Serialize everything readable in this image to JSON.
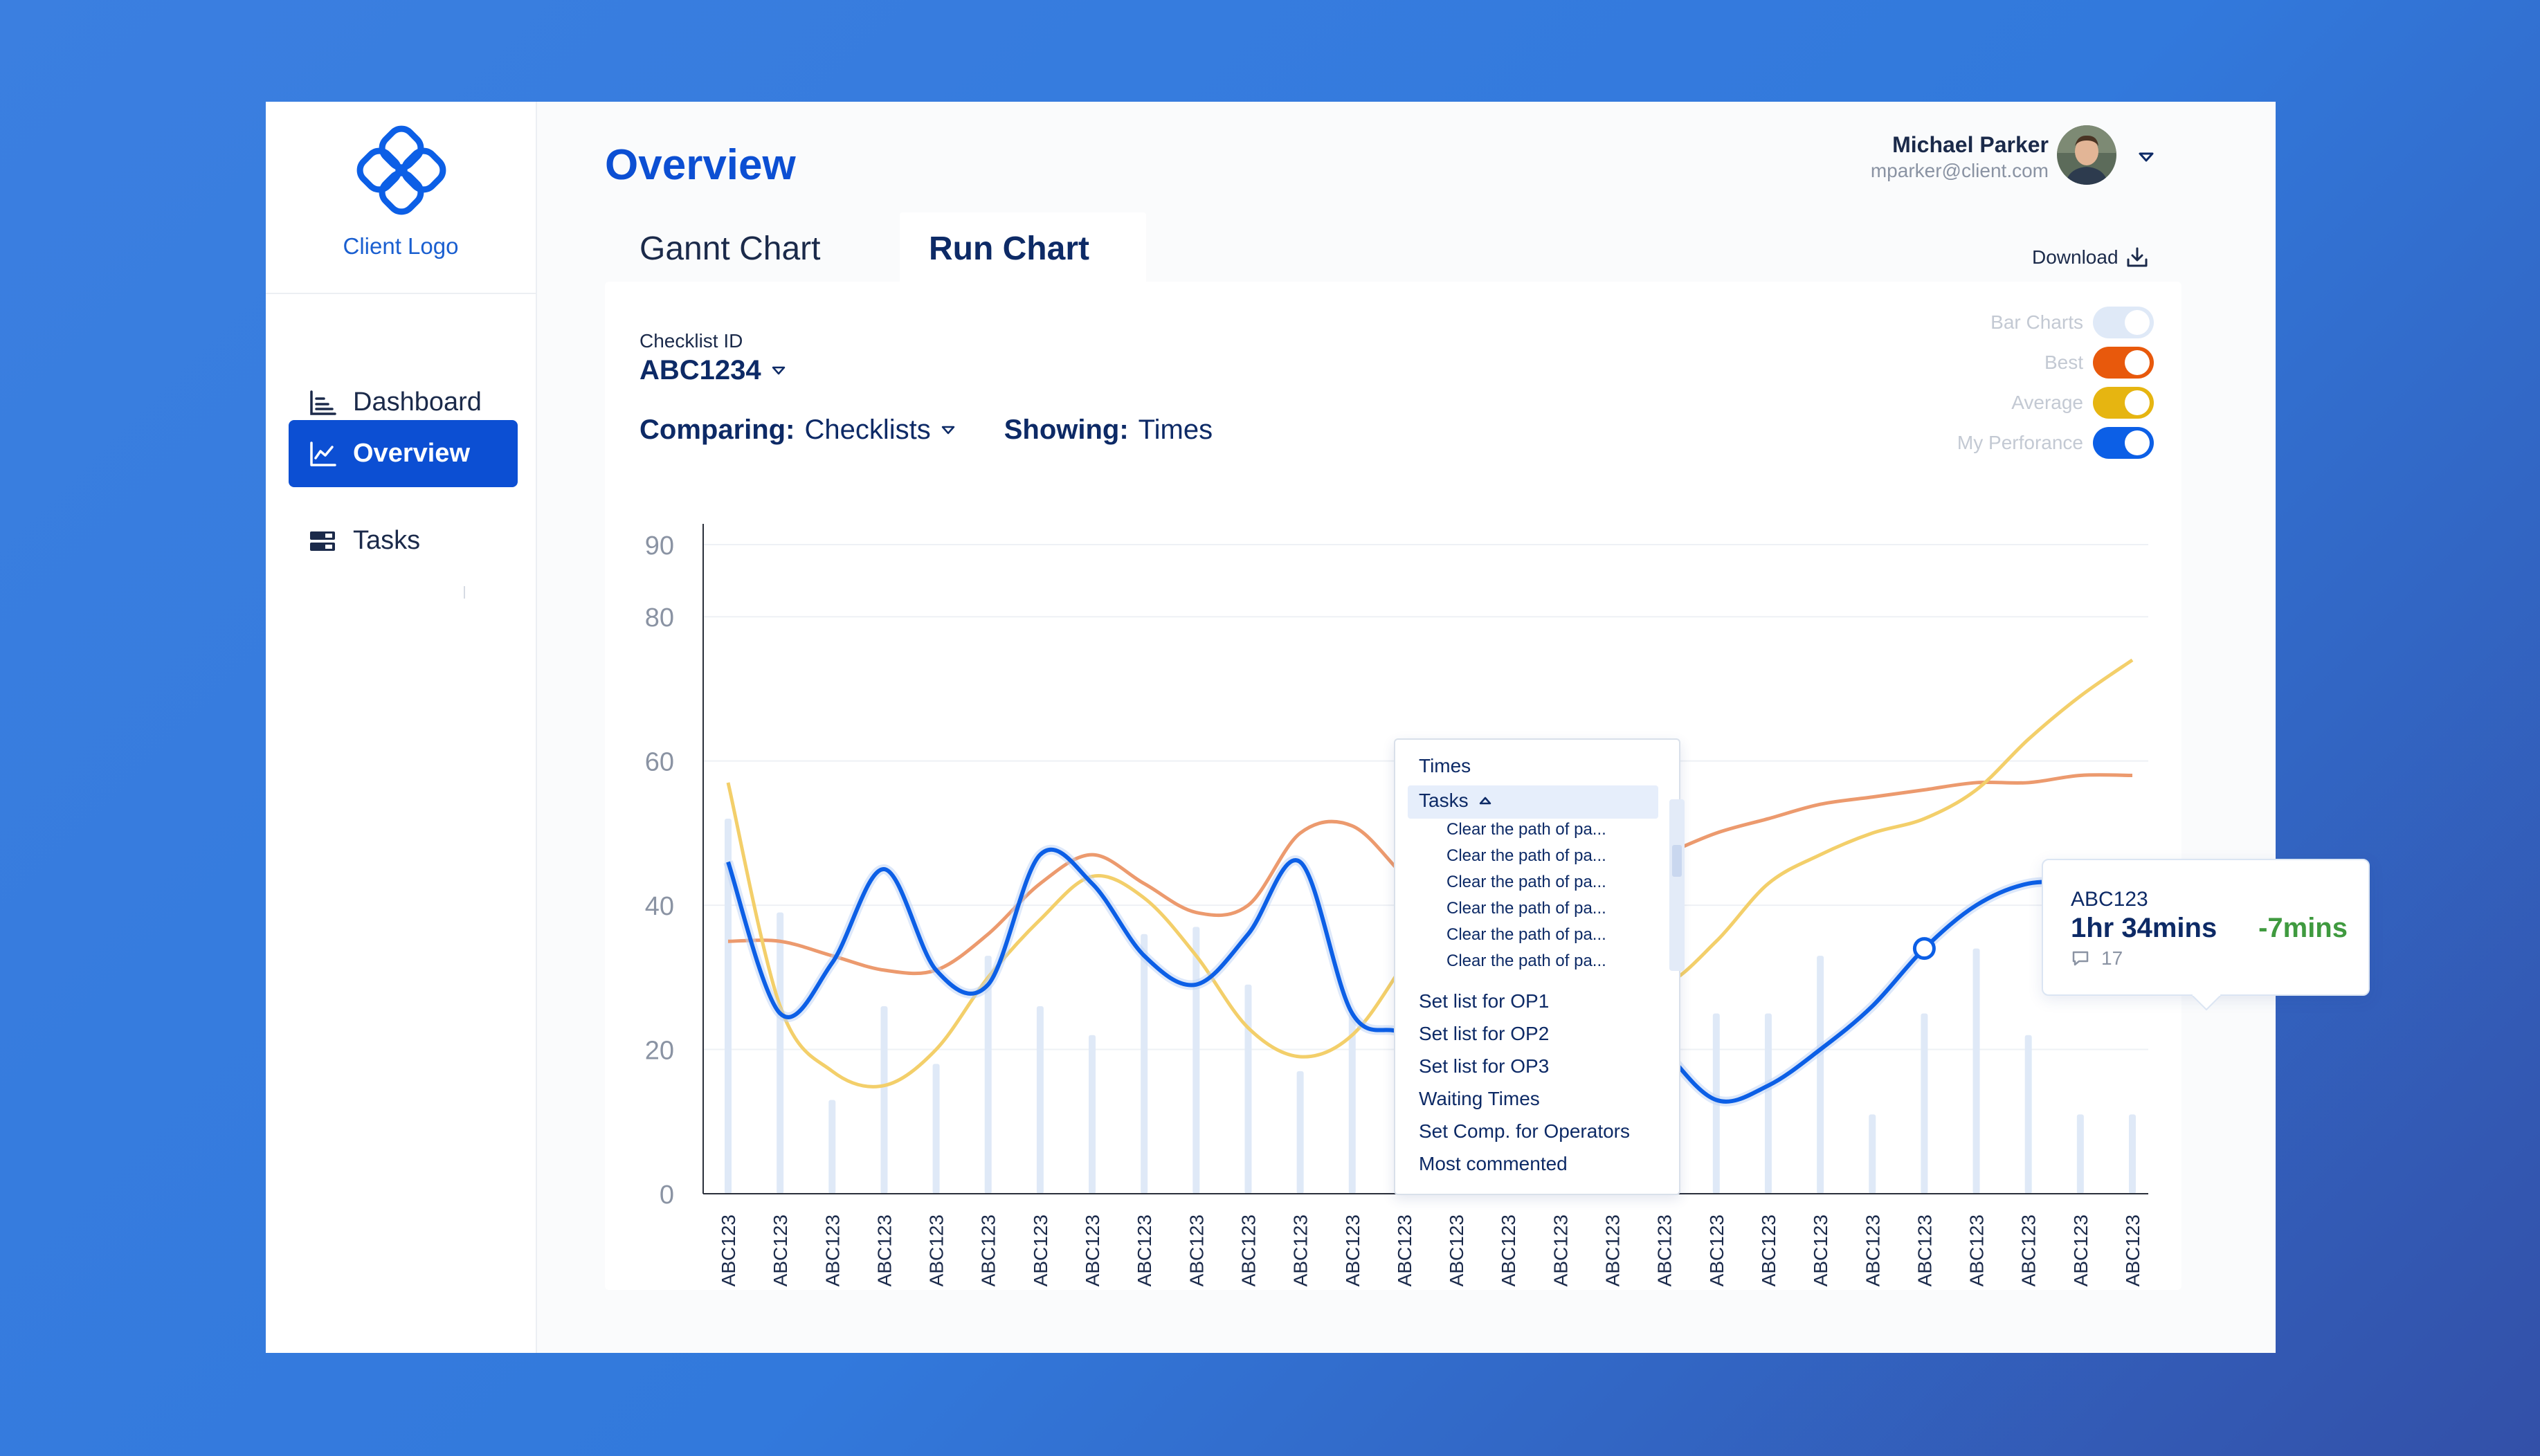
{
  "sidebar": {
    "logo_text": "Client Logo",
    "items": [
      {
        "label": "Dashboard"
      },
      {
        "label": "Overview"
      },
      {
        "label": "Tasks"
      }
    ]
  },
  "header": {
    "title": "Overview",
    "user_name": "Michael Parker",
    "user_email": "mparker@client.com"
  },
  "tabs": [
    {
      "label": "Gannt Chart",
      "active": false
    },
    {
      "label": "Run Chart",
      "active": true
    }
  ],
  "download_label": "Download",
  "filters": {
    "checklist_label": "Checklist ID",
    "checklist_value": "ABC1234",
    "comparing_label": "Comparing:",
    "comparing_value": "Checklists",
    "showing_label": "Showing:",
    "showing_value": "Times"
  },
  "toggles": [
    {
      "label": "Bar Charts",
      "on": false,
      "color": "#dfe9f7"
    },
    {
      "label": "Best",
      "on": true,
      "color": "#e8590c"
    },
    {
      "label": "Average",
      "on": true,
      "color": "#e6b511"
    },
    {
      "label": "My Perforance",
      "on": true,
      "color": "#0c5fe6"
    }
  ],
  "dropdown": {
    "items_top": [
      "Times"
    ],
    "expanded": "Tasks",
    "subitems": [
      "Clear the path of pa...",
      "Clear the path of pa...",
      "Clear the path of pa...",
      "Clear the path of pa...",
      "Clear the path of pa...",
      "Clear the path of pa..."
    ],
    "items_bottom": [
      "Set list for OP1",
      "Set list for OP2",
      "Set list for OP3",
      "Waiting Times",
      "Set Comp. for Operators",
      "Most commented"
    ]
  },
  "tooltip": {
    "id": "ABC123",
    "time": "1hr 34mins",
    "diff": "-7mins",
    "comments": "17",
    "diff_color": "#3f9a3f"
  },
  "chart_data": {
    "type": "line",
    "ylim": [
      0,
      90
    ],
    "yticks": [
      "0",
      "20",
      "40",
      "60",
      "80",
      "90"
    ],
    "categories": [
      "ABC123",
      "ABC123",
      "ABC123",
      "ABC123",
      "ABC123",
      "ABC123",
      "ABC123",
      "ABC123",
      "ABC123",
      "ABC123",
      "ABC123",
      "ABC123",
      "ABC123",
      "ABC123",
      "ABC123",
      "ABC123",
      "ABC123",
      "ABC123",
      "ABC123",
      "ABC123",
      "ABC123",
      "ABC123",
      "ABC123",
      "ABC123",
      "ABC123",
      "ABC123",
      "ABC123",
      "ABC123"
    ],
    "bars": [
      52,
      39,
      13,
      26,
      18,
      33,
      26,
      22,
      36,
      37,
      29,
      17,
      25,
      25,
      36,
      25,
      31,
      27,
      11,
      25,
      25,
      33,
      11,
      25,
      34,
      22,
      11,
      11
    ],
    "series": [
      {
        "name": "My Perforance",
        "color": "#0c5fe6",
        "values": [
          46,
          25,
          32,
          45,
          31,
          29,
          47,
          43,
          33,
          29,
          36,
          46,
          25,
          22,
          14,
          21,
          28,
          29,
          20,
          13,
          15,
          20,
          26,
          34,
          40,
          43,
          43,
          43
        ]
      },
      {
        "name": "Best",
        "color": "#ec9a6e",
        "values": [
          35,
          35,
          33,
          31,
          31,
          36,
          43,
          47,
          43,
          39,
          40,
          50,
          51,
          44,
          37,
          35,
          39,
          44,
          47,
          50,
          52,
          54,
          55,
          56,
          57,
          57,
          58,
          58
        ]
      },
      {
        "name": "Average",
        "color": "#f3cf6a",
        "values": [
          57,
          26,
          17,
          15,
          20,
          30,
          38,
          44,
          41,
          33,
          23,
          19,
          22,
          32,
          44,
          49,
          42,
          30,
          29,
          35,
          43,
          47,
          50,
          52,
          56,
          63,
          69,
          74
        ]
      }
    ],
    "highlight_index": 23
  }
}
